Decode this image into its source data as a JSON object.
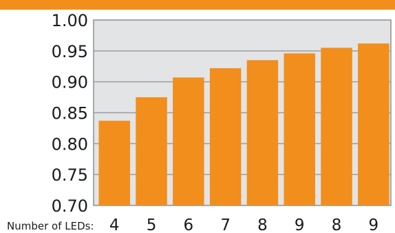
{
  "colors": {
    "accent": "#f28e1c",
    "plot_background": "#e3e4e6",
    "gridline": "#9a9da2",
    "axis": "#8a8d92"
  },
  "chart_data": {
    "type": "bar",
    "xlabel": "Number of LEDs:",
    "ylabel": "",
    "title": "",
    "categories": [
      "4",
      "5",
      "6",
      "7",
      "8",
      "9",
      "8",
      "9"
    ],
    "values": [
      0.837,
      0.875,
      0.907,
      0.922,
      0.935,
      0.946,
      0.955,
      0.962
    ],
    "ylim": [
      0.7,
      1.0
    ],
    "yticks": [
      "0.70",
      "0.75",
      "0.80",
      "0.85",
      "0.90",
      "0.95",
      "1.00"
    ],
    "grid": true,
    "legend": "none"
  }
}
